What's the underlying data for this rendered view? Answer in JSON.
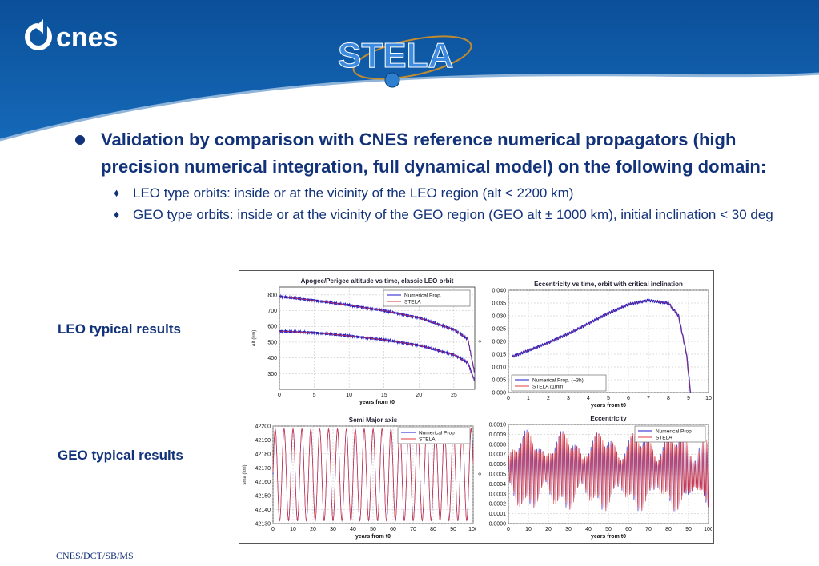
{
  "brand": {
    "logo_text": "cnes",
    "product_logo_text": "STELA"
  },
  "colors": {
    "header_blue": "#0d5aa6",
    "text_blue": "#12327a",
    "series_blue": "#1a1acc",
    "series_red": "#e33b3b"
  },
  "content": {
    "main_bullet": "Validation by comparison with CNES reference numerical propagators (high precision numerical integration, full dynamical model) on the following domain:",
    "sub_bullets": [
      "LEO type orbits: inside or at the vicinity of the LEO region (alt < 2200 km)",
      "GEO type orbits: inside or at the vicinity of the GEO region (GEO alt  ± 1000 km), initial inclination < 30 deg"
    ],
    "bullet_symbol": "●",
    "sub_bullet_symbol": "♦"
  },
  "labels": {
    "leo": "LEO typical results",
    "geo": "GEO typical results"
  },
  "footer": "CNES/DCT/SB/MS",
  "chart_data": [
    {
      "type": "line",
      "title": "Apogee/Perigee altitude vs time, classic LEO orbit",
      "xlabel": "years from t0",
      "ylabel": "Alt (km)",
      "xlim": [
        0,
        28
      ],
      "ylim": [
        200,
        850
      ],
      "xticks": [
        "0",
        "5",
        "10",
        "15",
        "20",
        "25"
      ],
      "yticks": [
        "300",
        "400",
        "500",
        "600",
        "700",
        "800"
      ],
      "legend": [
        "Numerical Prop.",
        "STELA"
      ],
      "series": [
        {
          "name": "Numerical Prop.",
          "x": [
            0,
            5,
            10,
            15,
            20,
            25,
            27,
            28
          ],
          "y_apogee": [
            790,
            765,
            735,
            700,
            655,
            580,
            520,
            300
          ],
          "y_perigee": [
            570,
            560,
            540,
            515,
            480,
            420,
            370,
            250
          ]
        },
        {
          "name": "STELA",
          "x": [
            0,
            5,
            10,
            15,
            20,
            25,
            27,
            28
          ],
          "y_apogee": [
            790,
            765,
            735,
            700,
            655,
            580,
            520,
            300
          ],
          "y_perigee": [
            570,
            560,
            540,
            515,
            480,
            420,
            370,
            250
          ]
        }
      ]
    },
    {
      "type": "line",
      "title": "Eccentricity vs time, orbit with critical inclination",
      "xlabel": "years from t0",
      "ylabel": "e",
      "xlim": [
        0,
        10
      ],
      "ylim": [
        0,
        0.04
      ],
      "xticks": [
        "0",
        "1",
        "2",
        "3",
        "4",
        "5",
        "6",
        "7",
        "8",
        "9",
        "10"
      ],
      "yticks": [
        "0.000",
        "0.005",
        "0.010",
        "0.015",
        "0.020",
        "0.025",
        "0.030",
        "0.035",
        "0.040"
      ],
      "legend": [
        "Numerical Prop. (~3h)",
        "STELA (1min)"
      ],
      "series": [
        {
          "name": "Numerical Prop. (~3h)",
          "x": [
            0.2,
            1,
            2,
            3,
            4,
            5,
            6,
            7,
            8,
            8.5,
            8.9,
            9.1
          ],
          "y": [
            0.014,
            0.0165,
            0.0195,
            0.023,
            0.027,
            0.031,
            0.0345,
            0.036,
            0.035,
            0.03,
            0.015,
            0.0
          ]
        },
        {
          "name": "STELA (1min)",
          "x": [
            0.2,
            1,
            2,
            3,
            4,
            5,
            6,
            7,
            8,
            8.5,
            8.9,
            9.1
          ],
          "y": [
            0.014,
            0.0165,
            0.0195,
            0.023,
            0.027,
            0.031,
            0.0345,
            0.036,
            0.035,
            0.03,
            0.015,
            0.0
          ]
        }
      ]
    },
    {
      "type": "line",
      "title": "Semi Major axis",
      "xlabel": "years from t0",
      "ylabel": "sma (km)",
      "xlim": [
        0,
        100
      ],
      "ylim": [
        42130,
        42200
      ],
      "xticks": [
        "0",
        "10",
        "20",
        "30",
        "40",
        "50",
        "60",
        "70",
        "80",
        "90",
        "100"
      ],
      "yticks": [
        "42130",
        "42140",
        "42150",
        "42160",
        "42170",
        "42180",
        "42190",
        "42200"
      ],
      "legend": [
        "Numerical Prop",
        "STELA"
      ],
      "series": [
        {
          "name": "Numerical Prop",
          "oscillation_period_years": 4.45,
          "min": 42132,
          "max": 42198
        },
        {
          "name": "STELA",
          "oscillation_period_years": 4.45,
          "min": 42132,
          "max": 42198
        }
      ]
    },
    {
      "type": "line",
      "title": "Eccentricity",
      "xlabel": "years from t0",
      "ylabel": "e",
      "xlim": [
        0,
        100
      ],
      "ylim": [
        0,
        0.001
      ],
      "xticks": [
        "0",
        "10",
        "20",
        "30",
        "40",
        "50",
        "60",
        "70",
        "80",
        "90",
        "100"
      ],
      "yticks": [
        "0.0000",
        "0.0001",
        "0.0002",
        "0.0003",
        "0.0004",
        "0.0005",
        "0.0006",
        "0.0007",
        "0.0008",
        "0.0009",
        "0.0010"
      ],
      "legend": [
        "Numerical Prop",
        "STELA"
      ],
      "series": [
        {
          "name": "Numerical Prop",
          "envelope_period_years": 18.6,
          "min": 0.0001,
          "max": 0.00095
        },
        {
          "name": "STELA",
          "envelope_period_years": 18.6,
          "min": 0.0001,
          "max": 0.00095
        }
      ]
    }
  ]
}
